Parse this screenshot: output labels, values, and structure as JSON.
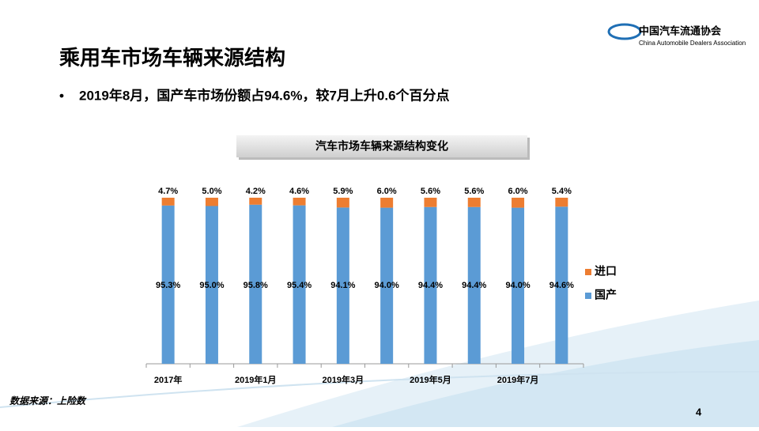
{
  "header": {
    "title": "乘用车市场车辆来源结构",
    "bullet": "2019年8月，国产车市场份额占94.6%，较7月上升0.6个百分点"
  },
  "logo": {
    "name": "中国汽车流通协会",
    "english": "China Automobile Dealers Association"
  },
  "footer": {
    "source": "数据来源：上险数",
    "page": "4"
  },
  "chart_data": {
    "type": "bar",
    "stacked": true,
    "title": "汽车市场车辆来源结构变化",
    "categories": [
      "2017年",
      null,
      "2019年1月",
      null,
      "2019年3月",
      null,
      "2019年5月",
      null,
      "2019年7月",
      null
    ],
    "series": [
      {
        "name": "国产",
        "color": "#5b9bd5",
        "values": [
          95.3,
          95.0,
          95.8,
          95.4,
          94.1,
          94.0,
          94.4,
          94.4,
          94.0,
          94.6
        ],
        "value_labels": [
          "95.3%",
          "95.0%",
          "95.8%",
          "95.4%",
          "94.1%",
          "94.0%",
          "94.4%",
          "94.4%",
          "94.0%",
          "94.6%"
        ]
      },
      {
        "name": "进口",
        "color": "#ed7d31",
        "values": [
          4.7,
          5.0,
          4.2,
          4.6,
          5.9,
          6.0,
          5.6,
          5.6,
          6.0,
          5.4
        ],
        "value_labels": [
          "4.7%",
          "5.0%",
          "4.2%",
          "4.6%",
          "5.9%",
          "6.0%",
          "5.6%",
          "5.6%",
          "6.0%",
          "5.4%"
        ]
      }
    ],
    "legend": "right"
  }
}
